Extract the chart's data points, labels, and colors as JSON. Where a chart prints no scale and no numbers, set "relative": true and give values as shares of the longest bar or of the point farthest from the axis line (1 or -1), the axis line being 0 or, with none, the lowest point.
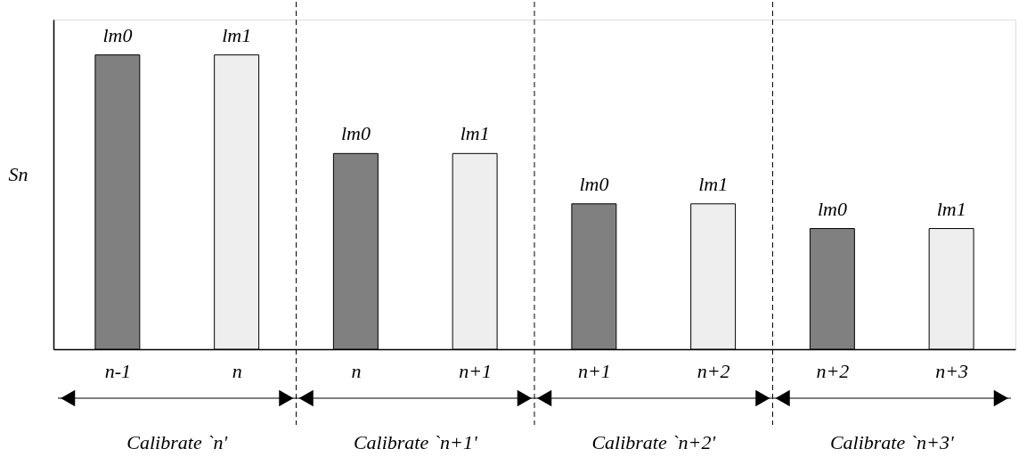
{
  "chart_data": {
    "type": "bar",
    "relative": true,
    "ylabel": "Sn",
    "categories": [
      "n-1",
      "n",
      "n",
      "n+1",
      "n+1",
      "n+2",
      "n+2",
      "n+3"
    ],
    "series": [
      {
        "name": "lm0",
        "color": "#808080",
        "values": [
          1,
          null,
          0.665,
          null,
          0.494,
          null,
          0.41,
          null
        ]
      },
      {
        "name": "lm1",
        "color": "#eeeeee",
        "values": [
          null,
          1,
          null,
          0.665,
          null,
          0.494,
          null,
          0.41
        ]
      }
    ],
    "annotations": [
      "Calibrate `n'",
      "Calibrate `n+1'",
      "Calibrate `n+2'",
      "Calibrate `n+3'"
    ]
  }
}
